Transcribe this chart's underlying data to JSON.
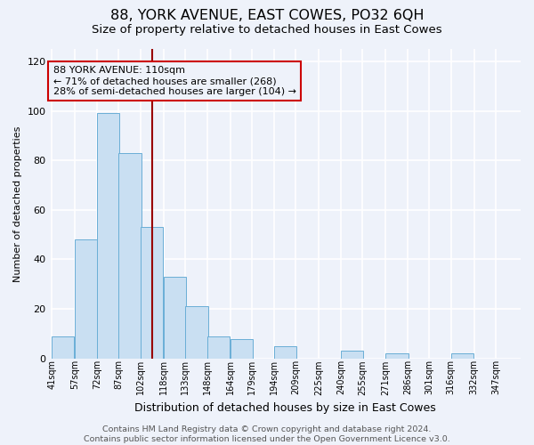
{
  "title": "88, YORK AVENUE, EAST COWES, PO32 6QH",
  "subtitle": "Size of property relative to detached houses in East Cowes",
  "xlabel": "Distribution of detached houses by size in East Cowes",
  "ylabel": "Number of detached properties",
  "bar_labels": [
    "41sqm",
    "57sqm",
    "72sqm",
    "87sqm",
    "102sqm",
    "118sqm",
    "133sqm",
    "148sqm",
    "164sqm",
    "179sqm",
    "194sqm",
    "209sqm",
    "225sqm",
    "240sqm",
    "255sqm",
    "271sqm",
    "286sqm",
    "301sqm",
    "316sqm",
    "332sqm",
    "347sqm"
  ],
  "bar_heights": [
    9,
    48,
    99,
    83,
    53,
    33,
    21,
    9,
    8,
    0,
    5,
    0,
    0,
    3,
    0,
    2,
    0,
    0,
    2,
    0,
    0
  ],
  "bar_color": "#c9dff2",
  "bar_edgecolor": "#6aaed6",
  "ylim": [
    0,
    125
  ],
  "yticks": [
    0,
    20,
    40,
    60,
    80,
    100,
    120
  ],
  "vline_x": 110,
  "vline_color": "#990000",
  "annotation_line1": "88 YORK AVENUE: 110sqm",
  "annotation_line2": "← 71% of detached houses are smaller (268)",
  "annotation_line3": "28% of semi-detached houses are larger (104) →",
  "annotation_box_edgecolor": "#cc0000",
  "annotation_text_color": "#000000",
  "footer_text": "Contains HM Land Registry data © Crown copyright and database right 2024.\nContains public sector information licensed under the Open Government Licence v3.0.",
  "background_color": "#eef2fa",
  "grid_color": "#ffffff",
  "title_fontsize": 11.5,
  "subtitle_fontsize": 9.5,
  "xlabel_fontsize": 9,
  "ylabel_fontsize": 8,
  "footer_fontsize": 6.8,
  "annotation_fontsize": 8,
  "bin_width": 16
}
